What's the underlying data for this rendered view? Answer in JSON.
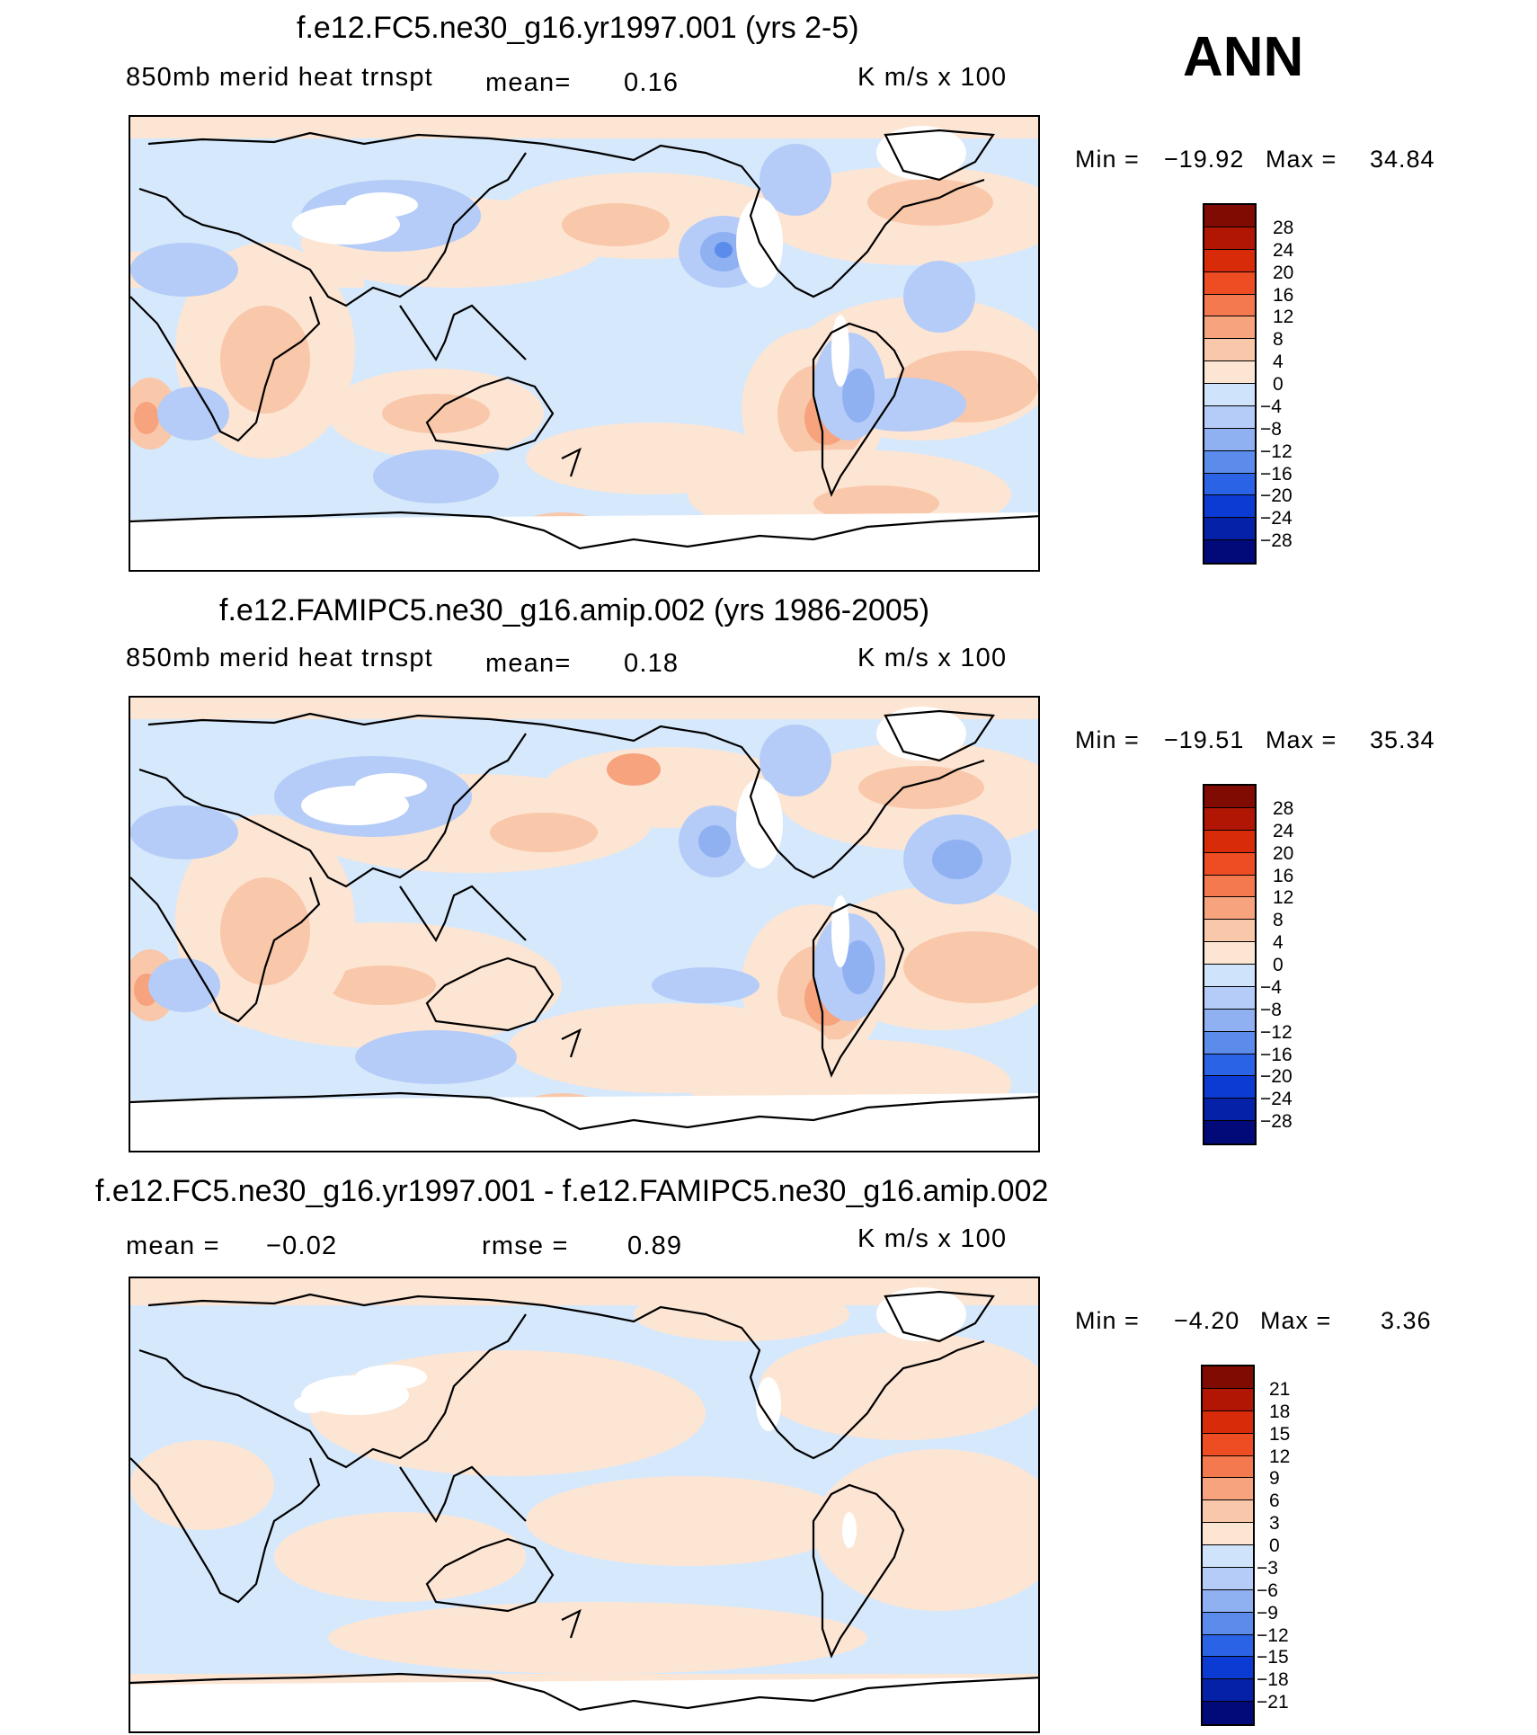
{
  "season": "ANN",
  "colors": {
    "ocean_light": "#d6e8fb",
    "land_white": "#ffffff",
    "coast": "#000000",
    "blue_levels": [
      "#cfe4fa",
      "#b4ccf7",
      "#8fb1f2",
      "#5b8cec",
      "#2a63e6",
      "#0c3bd3",
      "#0521a8",
      "#020a7a"
    ],
    "red_levels": [
      "#fde5d4",
      "#f9c7a9",
      "#f6a37e",
      "#f4794f",
      "#ee4d24",
      "#d82b09",
      "#b11605",
      "#7f0b02"
    ]
  },
  "panels": [
    {
      "title": "f.e12.FC5.ne30_g16.yr1997.001 (yrs 2-5)",
      "variable": "850mb merid heat trnspt",
      "mean_label": "mean=",
      "mean_value": "0.16",
      "units": "K m/s x 100",
      "min_label": "Min =",
      "min_value": "−19.92",
      "max_label": "Max =",
      "max_value": "34.84",
      "colorbar_ticks": [
        "28",
        "24",
        "20",
        "16",
        "12",
        "8",
        "4",
        "0",
        "−4",
        "−8",
        "−12",
        "−16",
        "−20",
        "−24",
        "−28"
      ]
    },
    {
      "title": "f.e12.FAMIPC5.ne30_g16.amip.002 (yrs 1986-2005)",
      "variable": "850mb merid heat trnspt",
      "mean_label": "mean=",
      "mean_value": "0.18",
      "units": "K m/s x 100",
      "min_label": "Min =",
      "min_value": "−19.51",
      "max_label": "Max =",
      "max_value": "35.34",
      "colorbar_ticks": [
        "28",
        "24",
        "20",
        "16",
        "12",
        "8",
        "4",
        "0",
        "−4",
        "−8",
        "−12",
        "−16",
        "−20",
        "−24",
        "−28"
      ]
    },
    {
      "title": "f.e12.FC5.ne30_g16.yr1997.001 - f.e12.FAMIPC5.ne30_g16.amip.002",
      "mean_label": "mean =",
      "mean_value": "−0.02",
      "rmse_label": "rmse =",
      "rmse_value": "0.89",
      "units": "K m/s x 100",
      "min_label": "Min =",
      "min_value": "−4.20",
      "max_label": "Max =",
      "max_value": "3.36",
      "colorbar_ticks": [
        "21",
        "18",
        "15",
        "12",
        "9",
        "6",
        "3",
        "0",
        "−3",
        "−6",
        "−9",
        "−12",
        "−15",
        "−18",
        "−21"
      ]
    }
  ]
}
